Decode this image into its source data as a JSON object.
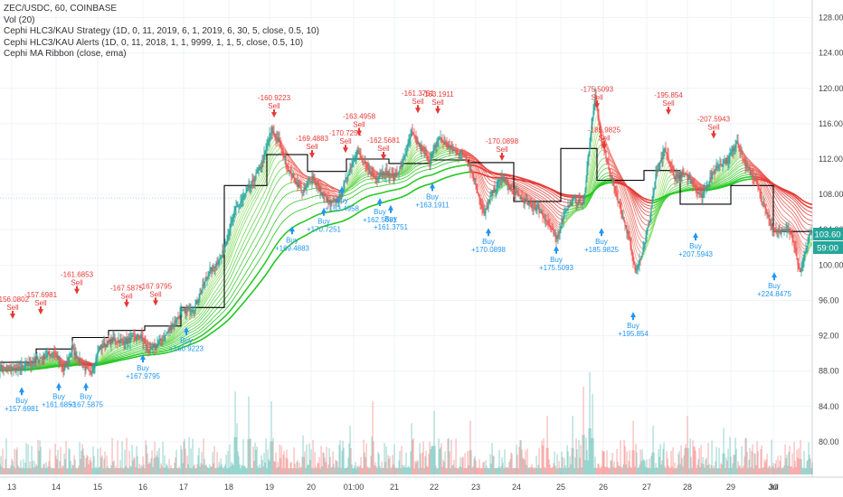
{
  "legend": {
    "symbol": "ZEC/USDC, 60, COINBASE",
    "vol": "Vol (20)",
    "strategy": "Cephi HLC3/KAU Strategy (1D, 0, 11, 2019, 6, 1, 2019, 6, 30, 5, close, 0.5, 10)",
    "alerts": "Cephi HLC3/KAU Alerts (1D, 0, 11, 2018, 1, 1, 9999, 1, 1, 5, close, 0.5, 10)",
    "ribbon": "Cephi MA Ribbon (close, ema)"
  },
  "colors": {
    "buy": "#2196f3",
    "sell": "#e53935",
    "up": "#26a69a",
    "down": "#ef5350",
    "step": "#000000",
    "ribbon_fast": "#e53935",
    "ribbon_slow": "#22c722"
  },
  "chart_data": {
    "type": "candlestick",
    "x_ticks": [
      "13",
      "14",
      "15",
      "16",
      "17",
      "18",
      "19",
      "20",
      "01:00",
      "21",
      "22",
      "23",
      "24",
      "25",
      "26",
      "27",
      "28",
      "29",
      "30",
      "Jul"
    ],
    "y_ticks": [
      80.0,
      84.0,
      88.0,
      92.0,
      96.0,
      100.0,
      104.0,
      108.0,
      112.0,
      116.0,
      120.0,
      124.0,
      128.0
    ],
    "ylim": [
      76.0,
      130.0
    ],
    "last_price": "103.60",
    "countdown": "59:00",
    "close_anchors": [
      [
        0,
        88.4
      ],
      [
        20,
        88.2
      ],
      [
        40,
        89.2
      ],
      [
        60,
        90.2
      ],
      [
        70,
        88.0
      ],
      [
        80,
        90.4
      ],
      [
        90,
        88.8
      ],
      [
        100,
        87.6
      ],
      [
        110,
        90.6
      ],
      [
        125,
        91.5
      ],
      [
        140,
        91.4
      ],
      [
        155,
        92.0
      ],
      [
        165,
        90.2
      ],
      [
        180,
        91.6
      ],
      [
        200,
        94.6
      ],
      [
        215,
        95.2
      ],
      [
        230,
        99.0
      ],
      [
        245,
        101.0
      ],
      [
        260,
        106.2
      ],
      [
        275,
        108.6
      ],
      [
        290,
        111.5
      ],
      [
        300,
        115.3
      ],
      [
        308,
        114.0
      ],
      [
        320,
        110.6
      ],
      [
        335,
        108.2
      ],
      [
        345,
        110.0
      ],
      [
        355,
        108.2
      ],
      [
        365,
        107.0
      ],
      [
        375,
        107.4
      ],
      [
        385,
        110.5
      ],
      [
        395,
        112.9
      ],
      [
        405,
        111.0
      ],
      [
        415,
        109.8
      ],
      [
        425,
        110.6
      ],
      [
        435,
        109.9
      ],
      [
        445,
        111.4
      ],
      [
        455,
        114.9
      ],
      [
        465,
        113.2
      ],
      [
        475,
        111.7
      ],
      [
        485,
        114.4
      ],
      [
        500,
        113.0
      ],
      [
        515,
        112.4
      ],
      [
        525,
        109.6
      ],
      [
        535,
        105.6
      ],
      [
        545,
        108.3
      ],
      [
        555,
        109.9
      ],
      [
        565,
        108.6
      ],
      [
        575,
        107.7
      ],
      [
        585,
        106.8
      ],
      [
        595,
        106.4
      ],
      [
        605,
        104.9
      ],
      [
        615,
        102.9
      ],
      [
        625,
        106.2
      ],
      [
        635,
        107.4
      ],
      [
        645,
        106.8
      ],
      [
        652,
        114.0
      ],
      [
        658,
        119.0
      ],
      [
        665,
        114.0
      ],
      [
        675,
        110.3
      ],
      [
        685,
        106.8
      ],
      [
        695,
        103.2
      ],
      [
        702,
        99.5
      ],
      [
        710,
        101.3
      ],
      [
        718,
        105.0
      ],
      [
        725,
        110.1
      ],
      [
        735,
        113.0
      ],
      [
        745,
        110.0
      ],
      [
        755,
        110.3
      ],
      [
        765,
        109.5
      ],
      [
        775,
        107.7
      ],
      [
        785,
        109.8
      ],
      [
        795,
        111.5
      ],
      [
        805,
        111.9
      ],
      [
        815,
        114.1
      ],
      [
        825,
        111.1
      ],
      [
        835,
        109.7
      ],
      [
        845,
        106.5
      ],
      [
        855,
        104.1
      ],
      [
        865,
        103.8
      ],
      [
        875,
        103.8
      ],
      [
        885,
        98.9
      ],
      [
        895,
        103.6
      ],
      [
        898,
        103.6
      ]
    ],
    "volume_spikes": [
      {
        "i": 260,
        "v": 3.4
      },
      {
        "i": 262,
        "v": 2.1
      },
      {
        "i": 275,
        "v": 3.2
      },
      {
        "i": 300,
        "v": 3.0
      },
      {
        "i": 335,
        "v": 1.6
      },
      {
        "i": 387,
        "v": 2.0
      },
      {
        "i": 412,
        "v": 3.0
      },
      {
        "i": 455,
        "v": 2.1
      },
      {
        "i": 480,
        "v": 2.6
      },
      {
        "i": 520,
        "v": 2.2
      },
      {
        "i": 605,
        "v": 2.4
      },
      {
        "i": 633,
        "v": 2.4
      },
      {
        "i": 645,
        "v": 3.6
      },
      {
        "i": 652,
        "v": 4.2
      },
      {
        "i": 655,
        "v": 3.3
      },
      {
        "i": 700,
        "v": 2.2
      },
      {
        "i": 722,
        "v": 2.0
      },
      {
        "i": 760,
        "v": 2.4
      },
      {
        "i": 800,
        "v": 1.9
      },
      {
        "i": 885,
        "v": 1.4
      }
    ],
    "step_line": [
      [
        0,
        89.0
      ],
      [
        40,
        89.0
      ],
      [
        40,
        90.5
      ],
      [
        80,
        90.5
      ],
      [
        80,
        91.8
      ],
      [
        120,
        91.8
      ],
      [
        120,
        92.6
      ],
      [
        160,
        92.6
      ],
      [
        160,
        93.1
      ],
      [
        200,
        93.1
      ],
      [
        200,
        95.2
      ],
      [
        248,
        95.2
      ],
      [
        248,
        109.0
      ],
      [
        295,
        109.0
      ],
      [
        295,
        112.5
      ],
      [
        340,
        112.5
      ],
      [
        340,
        110.6
      ],
      [
        383,
        110.6
      ],
      [
        383,
        112.0
      ],
      [
        430,
        112.0
      ],
      [
        430,
        111.5
      ],
      [
        476,
        111.5
      ],
      [
        476,
        111.9
      ],
      [
        518,
        111.9
      ],
      [
        518,
        111.6
      ],
      [
        568,
        111.6
      ],
      [
        568,
        107.2
      ],
      [
        620,
        107.2
      ],
      [
        620,
        113.2
      ],
      [
        660,
        113.2
      ],
      [
        660,
        109.6
      ],
      [
        712,
        109.6
      ],
      [
        712,
        110.7
      ],
      [
        752,
        110.7
      ],
      [
        752,
        106.9
      ],
      [
        808,
        106.9
      ],
      [
        808,
        109.0
      ],
      [
        855,
        109.0
      ],
      [
        855,
        103.8
      ],
      [
        898,
        103.8
      ]
    ],
    "sell_signals": [
      {
        "i": 14,
        "price": 94.1,
        "label": "-156.0802"
      },
      {
        "i": 45,
        "price": 94.6,
        "label": "-157.6981"
      },
      {
        "i": 85,
        "price": 96.9,
        "label": "-161.6853"
      },
      {
        "i": 140,
        "price": 95.4,
        "label": "-167.5875"
      },
      {
        "i": 172,
        "price": 95.6,
        "label": "-167.9795"
      },
      {
        "i": 303,
        "price": 116.9,
        "label": "-160.9223"
      },
      {
        "i": 345,
        "price": 112.3,
        "label": "-169.4883"
      },
      {
        "i": 382,
        "price": 112.9,
        "label": "-170.7251"
      },
      {
        "i": 397,
        "price": 114.8,
        "label": "-163.4958"
      },
      {
        "i": 424,
        "price": 112.1,
        "label": "-162.5681"
      },
      {
        "i": 462,
        "price": 117.4,
        "label": "-161.3751"
      },
      {
        "i": 484,
        "price": 117.3,
        "label": "-163.1911"
      },
      {
        "i": 555,
        "price": 112.0,
        "label": "-170.0898"
      },
      {
        "i": 660,
        "price": 117.9,
        "label": "-175.5093"
      },
      {
        "i": 668,
        "price": 113.3,
        "label": "-185.9825"
      },
      {
        "i": 739,
        "price": 117.2,
        "label": "-195.854"
      },
      {
        "i": 789,
        "price": 114.5,
        "label": "-207.5943"
      }
    ],
    "buy_signals": [
      {
        "i": 24,
        "price": 86.0,
        "label": "+157.6981"
      },
      {
        "i": 65,
        "price": 86.5,
        "label": "+161.6853"
      },
      {
        "i": 95,
        "price": 86.5,
        "label": "+167.5875"
      },
      {
        "i": 158,
        "price": 89.7,
        "label": "+167.9795"
      },
      {
        "i": 206,
        "price": 92.8,
        "label": "+160.9223"
      },
      {
        "i": 323,
        "price": 104.2,
        "label": "+169.4883"
      },
      {
        "i": 358,
        "price": 106.3,
        "label": "+170.7251"
      },
      {
        "i": 378,
        "price": 108.7,
        "label": "+163.4958"
      },
      {
        "i": 420,
        "price": 107.4,
        "label": "+162.5681"
      },
      {
        "i": 432,
        "price": 106.6,
        "label": "+161.3751"
      },
      {
        "i": 478,
        "price": 109.1,
        "label": "+163.1911"
      },
      {
        "i": 540,
        "price": 104.0,
        "label": "+170.0898"
      },
      {
        "i": 615,
        "price": 102.0,
        "label": "+175.5093"
      },
      {
        "i": 665,
        "price": 104.0,
        "label": "+185.9825"
      },
      {
        "i": 700,
        "price": 94.5,
        "label": "+195.854"
      },
      {
        "i": 769,
        "price": 103.5,
        "label": "+207.5943"
      },
      {
        "i": 856,
        "price": 99.0,
        "label": "+224.8475"
      }
    ]
  }
}
